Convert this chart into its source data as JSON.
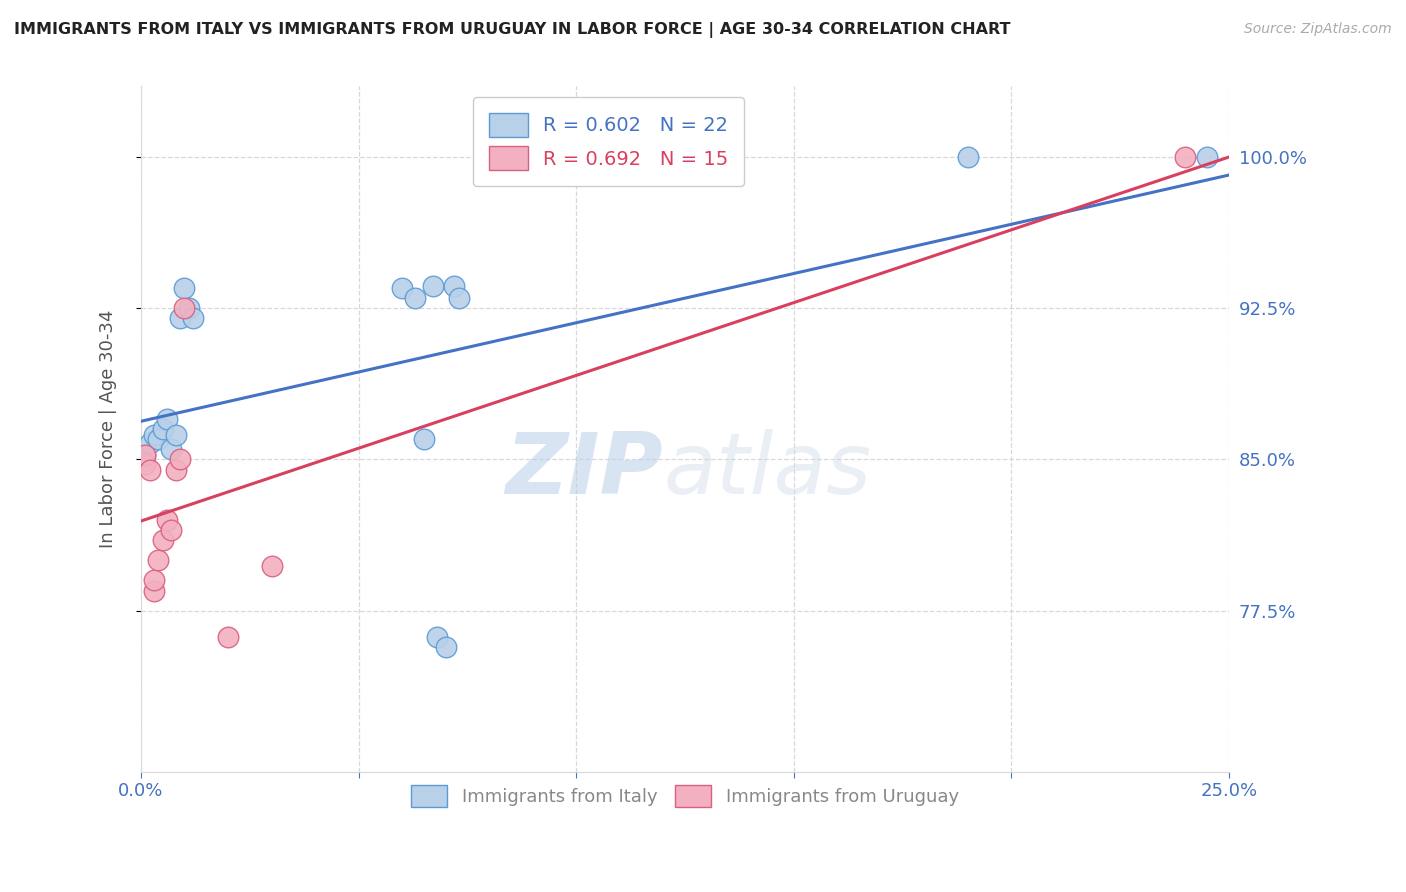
{
  "title": "IMMIGRANTS FROM ITALY VS IMMIGRANTS FROM URUGUAY IN LABOR FORCE | AGE 30-34 CORRELATION CHART",
  "source": "Source: ZipAtlas.com",
  "ylabel": "In Labor Force | Age 30-34",
  "xlim": [
    0.0,
    0.25
  ],
  "ylim": [
    0.695,
    1.035
  ],
  "yticks": [
    0.775,
    0.85,
    0.925,
    1.0
  ],
  "ytick_labels": [
    "77.5%",
    "85.0%",
    "92.5%",
    "100.0%"
  ],
  "xticks": [
    0.0,
    0.05,
    0.1,
    0.15,
    0.2,
    0.25
  ],
  "xtick_labels": [
    "0.0%",
    "",
    "",
    "",
    "",
    "25.0%"
  ],
  "italy_color": "#b8d0e8",
  "uruguay_color": "#f2b0c0",
  "italy_edge_color": "#5b9bd5",
  "uruguay_edge_color": "#d96080",
  "line_italy_color": "#4472c4",
  "line_uruguay_color": "#d94060",
  "italy_R": 0.602,
  "italy_N": 22,
  "uruguay_R": 0.692,
  "uruguay_N": 15,
  "italy_x": [
    0.001,
    0.002,
    0.003,
    0.004,
    0.005,
    0.006,
    0.007,
    0.008,
    0.009,
    0.01,
    0.011,
    0.012,
    0.06,
    0.063,
    0.065,
    0.067,
    0.068,
    0.07,
    0.072,
    0.073,
    0.19,
    0.245
  ],
  "italy_y": [
    0.852,
    0.858,
    0.862,
    0.86,
    0.865,
    0.87,
    0.855,
    0.862,
    0.92,
    0.935,
    0.925,
    0.92,
    0.935,
    0.93,
    0.86,
    0.936,
    0.762,
    0.757,
    0.936,
    0.93,
    1.0,
    1.0
  ],
  "uruguay_x": [
    0.001,
    0.001,
    0.002,
    0.003,
    0.003,
    0.004,
    0.005,
    0.006,
    0.007,
    0.008,
    0.009,
    0.01,
    0.02,
    0.03,
    0.24
  ],
  "uruguay_y": [
    0.848,
    0.852,
    0.845,
    0.785,
    0.79,
    0.8,
    0.81,
    0.82,
    0.815,
    0.845,
    0.85,
    0.925,
    0.762,
    0.797,
    1.0
  ],
  "watermark_zip": "ZIP",
  "watermark_atlas": "atlas",
  "bg_color": "#ffffff",
  "grid_color": "#d8d8d8",
  "title_color": "#222222",
  "axis_label_color": "#555555",
  "tick_color": "#4472c4",
  "legend_label_italy": "Immigrants from Italy",
  "legend_label_uruguay": "Immigrants from Uruguay"
}
